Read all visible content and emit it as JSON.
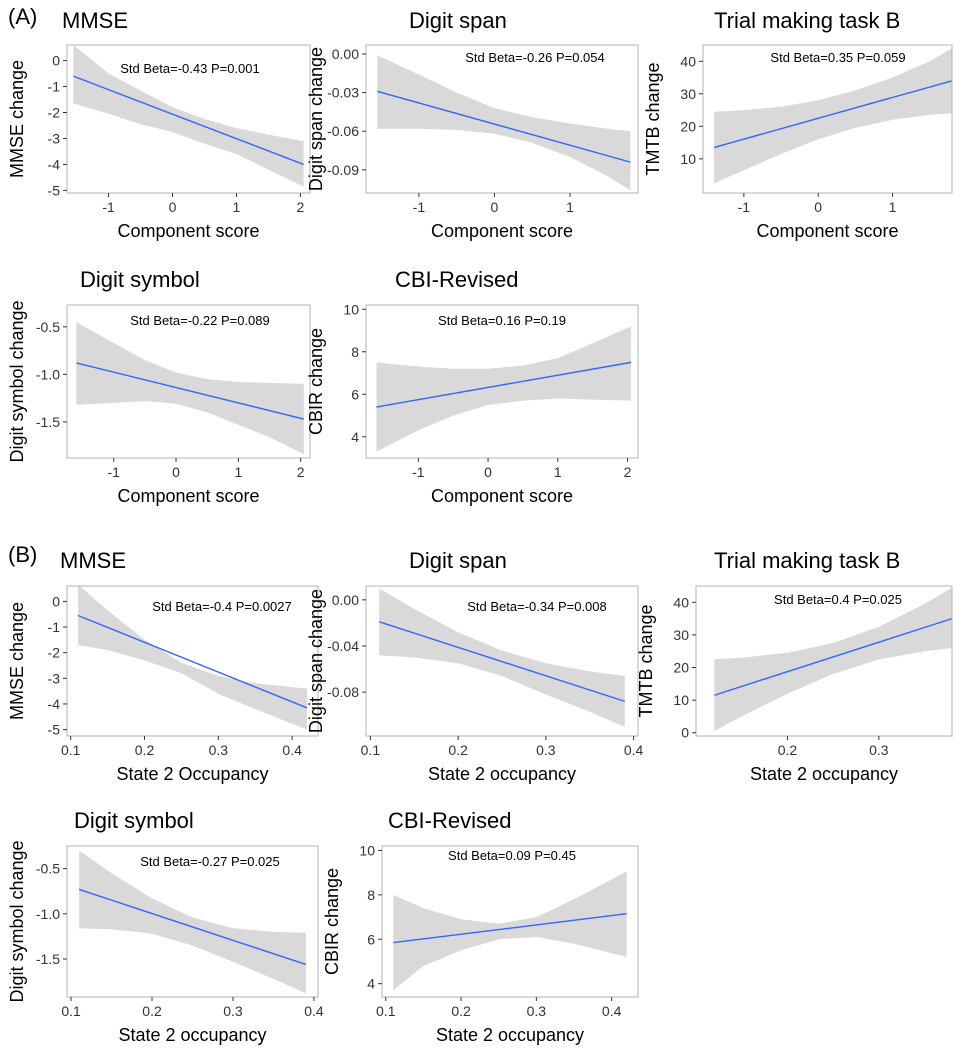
{
  "panels": [
    {
      "label": "(A)"
    },
    {
      "label": "(B)"
    }
  ],
  "chart_data": [
    {
      "panel": "(A)",
      "type": "line",
      "title": "MMSE",
      "xlabel": "Component score",
      "ylabel": "MMSE change",
      "annotation": "Std Beta=-0.43 P=0.001",
      "xlim": [
        -1.65,
        2.15
      ],
      "ylim": [
        -5.1,
        0.6
      ],
      "xticks": [
        -1,
        0,
        1,
        2
      ],
      "xtick_labels": [
        "-1",
        "0",
        "1",
        "2"
      ],
      "yticks": [
        0,
        -1,
        -2,
        -3,
        -4,
        -5
      ],
      "ytick_labels": [
        "0",
        "-1",
        "-2",
        "-3",
        "-4",
        "-5"
      ],
      "line": {
        "x": [
          -1.55,
          2.05
        ],
        "y": [
          -0.6,
          -4.0
        ]
      },
      "band": {
        "x": [
          -1.55,
          -1.0,
          -0.5,
          0.0,
          0.5,
          1.0,
          1.5,
          2.05
        ],
        "upper": [
          0.6,
          -0.5,
          -1.15,
          -1.8,
          -2.25,
          -2.6,
          -2.85,
          -3.1
        ],
        "lower": [
          -1.65,
          -2.05,
          -2.45,
          -2.75,
          -3.2,
          -3.6,
          -4.2,
          -4.85
        ]
      }
    },
    {
      "panel": "(A)",
      "type": "line",
      "title": "Digit span",
      "xlabel": "Component score",
      "ylabel": "Digit span change",
      "annotation": "Std Beta=-0.26 P=0.054",
      "xlim": [
        -1.7,
        1.9
      ],
      "ylim": [
        -0.108,
        0.007
      ],
      "xticks": [
        -1,
        0,
        1
      ],
      "xtick_labels": [
        "-1",
        "0",
        "1"
      ],
      "yticks": [
        0.0,
        -0.03,
        -0.06,
        -0.09
      ],
      "ytick_labels": [
        "0.00",
        "-0.03",
        "-0.06",
        "-0.09"
      ],
      "line": {
        "x": [
          -1.55,
          1.8
        ],
        "y": [
          -0.029,
          -0.084
        ]
      },
      "band": {
        "x": [
          -1.55,
          -1.0,
          -0.5,
          0.0,
          0.5,
          1.0,
          1.5,
          1.8
        ],
        "upper": [
          -0.001,
          -0.016,
          -0.03,
          -0.042,
          -0.049,
          -0.054,
          -0.058,
          -0.06
        ],
        "lower": [
          -0.058,
          -0.058,
          -0.059,
          -0.062,
          -0.069,
          -0.08,
          -0.095,
          -0.106
        ]
      }
    },
    {
      "panel": "(A)",
      "type": "line",
      "title": "Trial making task B",
      "xlabel": "Component score",
      "ylabel": "TMTB change",
      "annotation": "Std Beta=0.35 P=0.059",
      "xlim": [
        -1.55,
        1.8
      ],
      "ylim": [
        -0.5,
        45
      ],
      "xticks": [
        -1,
        0,
        1
      ],
      "xtick_labels": [
        "-1",
        "0",
        "1"
      ],
      "yticks": [
        10,
        20,
        30,
        40
      ],
      "ytick_labels": [
        "10",
        "20",
        "30",
        "40"
      ],
      "line": {
        "x": [
          -1.4,
          1.8
        ],
        "y": [
          13.5,
          34.0
        ]
      },
      "band": {
        "x": [
          -1.4,
          -1.0,
          -0.5,
          0.0,
          0.5,
          1.0,
          1.5,
          1.8
        ],
        "upper": [
          24.5,
          25.0,
          26.0,
          28.0,
          31.0,
          35.0,
          40.0,
          44.0
        ],
        "lower": [
          2.5,
          6.5,
          11.5,
          16.0,
          19.5,
          22.0,
          23.5,
          24.0
        ]
      }
    },
    {
      "panel": "(A)",
      "type": "line",
      "title": "Digit symbol",
      "xlabel": "Component score",
      "ylabel": "Digit symbol change",
      "annotation": "Std Beta=-0.22 P=0.089",
      "xlim": [
        -1.75,
        2.15
      ],
      "ylim": [
        -1.88,
        -0.27
      ],
      "xticks": [
        -1,
        0,
        1,
        2
      ],
      "xtick_labels": [
        "-1",
        "0",
        "1",
        "2"
      ],
      "yticks": [
        -0.5,
        -1.0,
        -1.5
      ],
      "ytick_labels": [
        "-0.5",
        "-1.0",
        "-1.5"
      ],
      "line": {
        "x": [
          -1.6,
          2.05
        ],
        "y": [
          -0.88,
          -1.47
        ]
      },
      "band": {
        "x": [
          -1.6,
          -1.0,
          -0.5,
          0.0,
          0.5,
          1.0,
          1.5,
          2.05
        ],
        "upper": [
          -0.45,
          -0.67,
          -0.85,
          -0.98,
          -1.05,
          -1.08,
          -1.09,
          -1.1
        ],
        "lower": [
          -1.32,
          -1.3,
          -1.28,
          -1.31,
          -1.4,
          -1.53,
          -1.66,
          -1.84
        ]
      }
    },
    {
      "panel": "(A)",
      "type": "line",
      "title": "CBI-Revised",
      "xlabel": "Component score",
      "ylabel": "CBIR change",
      "annotation": "Std Beta=0.16 P=0.19",
      "xlim": [
        -1.75,
        2.15
      ],
      "ylim": [
        3.0,
        10.2
      ],
      "xticks": [
        -1,
        0,
        1,
        2
      ],
      "xtick_labels": [
        "-1",
        "0",
        "1",
        "2"
      ],
      "yticks": [
        4,
        6,
        8,
        10
      ],
      "ytick_labels": [
        "4",
        "6",
        "8",
        "10"
      ],
      "line": {
        "x": [
          -1.6,
          2.05
        ],
        "y": [
          5.4,
          7.5
        ]
      },
      "band": {
        "x": [
          -1.6,
          -1.0,
          -0.5,
          0.0,
          0.5,
          1.0,
          1.5,
          2.05
        ],
        "upper": [
          7.5,
          7.3,
          7.2,
          7.2,
          7.35,
          7.7,
          8.4,
          9.2
        ],
        "lower": [
          3.3,
          4.3,
          5.0,
          5.5,
          5.7,
          5.8,
          5.75,
          5.7
        ]
      }
    },
    {
      "panel": "(B)",
      "type": "line",
      "title": "MMSE",
      "xlabel": "State 2 Occupancy",
      "ylabel": "MMSE change",
      "annotation": "Std Beta=-0.4 P=0.0027",
      "xlim": [
        0.095,
        0.435
      ],
      "ylim": [
        -5.25,
        0.6
      ],
      "xticks": [
        0.1,
        0.2,
        0.3,
        0.4
      ],
      "xtick_labels": [
        "0.1",
        "0.2",
        "0.3",
        "0.4"
      ],
      "yticks": [
        0,
        -1,
        -2,
        -3,
        -4,
        -5
      ],
      "ytick_labels": [
        "0",
        "-1",
        "-2",
        "-3",
        "-4",
        "-5"
      ],
      "line": {
        "x": [
          0.11,
          0.42
        ],
        "y": [
          -0.55,
          -4.15
        ]
      },
      "band": {
        "x": [
          0.11,
          0.15,
          0.2,
          0.25,
          0.3,
          0.35,
          0.42
        ],
        "upper": [
          0.65,
          -0.35,
          -1.5,
          -2.4,
          -2.9,
          -3.2,
          -3.4
        ],
        "lower": [
          -1.7,
          -1.9,
          -2.3,
          -2.8,
          -3.6,
          -4.2,
          -5.0
        ]
      }
    },
    {
      "panel": "(B)",
      "type": "line",
      "title": "Digit span",
      "xlabel": "State 2 occupancy",
      "ylabel": "Digit span change",
      "annotation": "Std Beta=-0.34 P=0.008",
      "xlim": [
        0.095,
        0.405
      ],
      "ylim": [
        -0.118,
        0.012
      ],
      "xticks": [
        0.1,
        0.2,
        0.3,
        0.4
      ],
      "xtick_labels": [
        "0.1",
        "0.2",
        "0.3",
        "0.4"
      ],
      "yticks": [
        0.0,
        -0.04,
        -0.08
      ],
      "ytick_labels": [
        "0.00",
        "-0.04",
        "-0.08"
      ],
      "line": {
        "x": [
          0.11,
          0.39
        ],
        "y": [
          -0.019,
          -0.088
        ]
      },
      "band": {
        "x": [
          0.11,
          0.15,
          0.2,
          0.25,
          0.3,
          0.35,
          0.39
        ],
        "upper": [
          0.01,
          -0.008,
          -0.028,
          -0.044,
          -0.055,
          -0.062,
          -0.066
        ],
        "lower": [
          -0.048,
          -0.05,
          -0.055,
          -0.066,
          -0.082,
          -0.097,
          -0.11
        ]
      }
    },
    {
      "panel": "(B)",
      "type": "line",
      "title": "Trial making task B",
      "xlabel": "State 2 occupancy",
      "ylabel": "TMTB change",
      "annotation": "Std Beta=0.4 P=0.025",
      "xlim": [
        0.1,
        0.38
      ],
      "ylim": [
        -1,
        45
      ],
      "xticks": [
        0.2,
        0.3
      ],
      "xtick_labels": [
        "0.2",
        "0.3"
      ],
      "yticks": [
        0,
        10,
        20,
        30,
        40
      ],
      "ytick_labels": [
        "0",
        "10",
        "20",
        "30",
        "40"
      ],
      "line": {
        "x": [
          0.12,
          0.38
        ],
        "y": [
          11.5,
          35.0
        ]
      },
      "band": {
        "x": [
          0.12,
          0.15,
          0.2,
          0.25,
          0.3,
          0.35,
          0.38
        ],
        "upper": [
          22.5,
          23.0,
          24.5,
          27.5,
          32.5,
          39.5,
          44.5
        ],
        "lower": [
          0.5,
          5.0,
          12.0,
          18.0,
          22.5,
          25.0,
          26.0
        ]
      }
    },
    {
      "panel": "(B)",
      "type": "line",
      "title": "Digit symbol",
      "xlabel": "State 2 occupancy",
      "ylabel": "Digit symbol change",
      "annotation": "Std Beta=-0.27 P=0.025",
      "xlim": [
        0.095,
        0.405
      ],
      "ylim": [
        -1.92,
        -0.25
      ],
      "xticks": [
        0.1,
        0.2,
        0.3,
        0.4
      ],
      "xtick_labels": [
        "0.1",
        "0.2",
        "0.3",
        "0.4"
      ],
      "yticks": [
        -0.5,
        -1.0,
        -1.5
      ],
      "ytick_labels": [
        "-0.5",
        "-1.0",
        "-1.5"
      ],
      "line": {
        "x": [
          0.11,
          0.39
        ],
        "y": [
          -0.73,
          -1.56
        ]
      },
      "band": {
        "x": [
          0.11,
          0.15,
          0.2,
          0.25,
          0.3,
          0.35,
          0.39
        ],
        "upper": [
          -0.3,
          -0.55,
          -0.83,
          -1.04,
          -1.16,
          -1.2,
          -1.21
        ],
        "lower": [
          -1.16,
          -1.17,
          -1.22,
          -1.35,
          -1.53,
          -1.72,
          -1.88
        ]
      }
    },
    {
      "panel": "(B)",
      "type": "line",
      "title": "CBI-Revised",
      "xlabel": "State 2 occupancy",
      "ylabel": "CBIR change",
      "annotation": "Std Beta=0.09 P=0.45",
      "xlim": [
        0.095,
        0.435
      ],
      "ylim": [
        3.4,
        10.2
      ],
      "xticks": [
        0.1,
        0.2,
        0.3,
        0.4
      ],
      "xtick_labels": [
        "0.1",
        "0.2",
        "0.3",
        "0.4"
      ],
      "yticks": [
        4,
        6,
        8,
        10
      ],
      "ytick_labels": [
        "4",
        "6",
        "8",
        "10"
      ],
      "line": {
        "x": [
          0.11,
          0.42
        ],
        "y": [
          5.85,
          7.15
        ]
      },
      "band": {
        "x": [
          0.11,
          0.15,
          0.2,
          0.25,
          0.3,
          0.35,
          0.42
        ],
        "upper": [
          8.0,
          7.4,
          6.9,
          6.7,
          7.0,
          7.8,
          9.05
        ],
        "lower": [
          3.7,
          4.8,
          5.5,
          6.0,
          6.1,
          5.8,
          5.2
        ]
      }
    }
  ]
}
